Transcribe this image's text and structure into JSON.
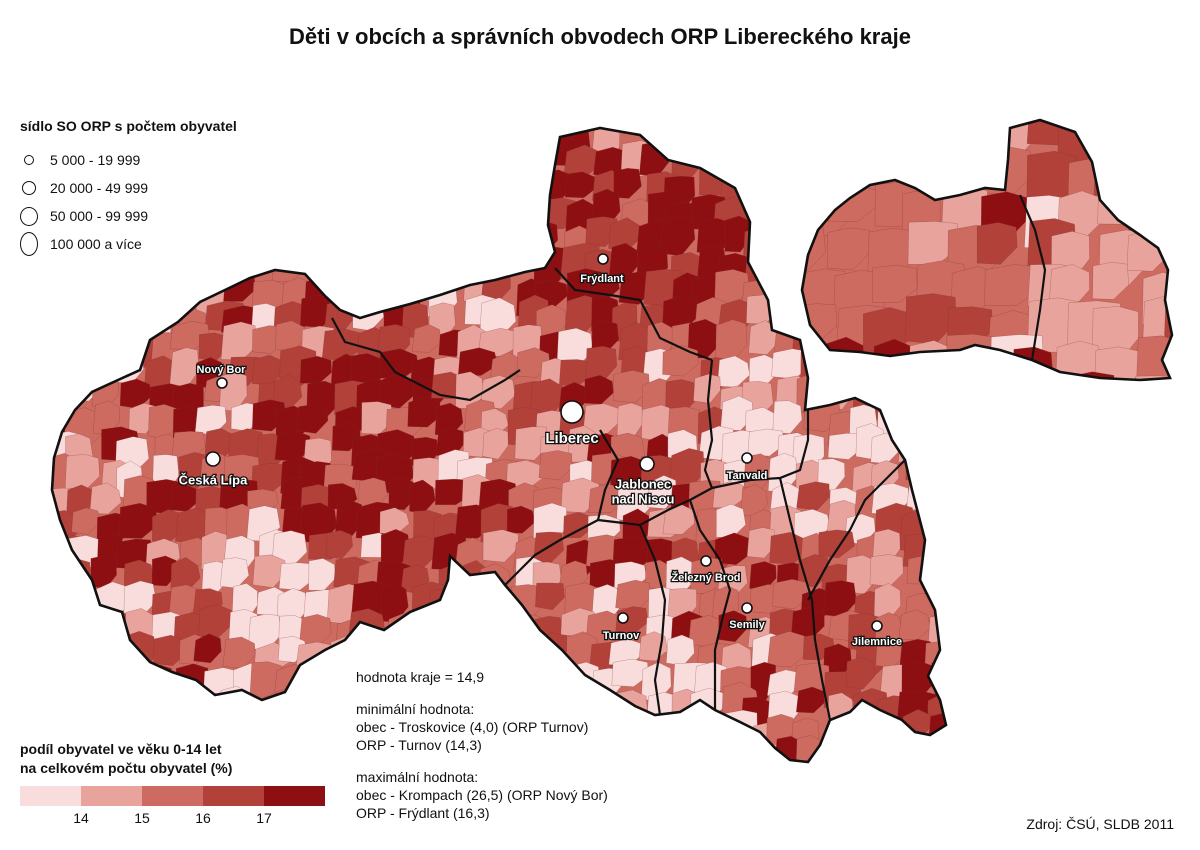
{
  "title": "Děti v obcích a správních obvodech ORP Libereckého kraje",
  "size_legend": {
    "heading": "sídlo SO ORP s počtem obyvatel",
    "classes": [
      {
        "label": "5 000 - 19 999",
        "icon": "circle-small-icon"
      },
      {
        "label": "20 000 - 49 999",
        "icon": "circle-medium-icon"
      },
      {
        "label": "50 000 - 99 999",
        "icon": "circle-large-icon"
      },
      {
        "label": "100 000 a více",
        "icon": "circle-xlarge-icon"
      }
    ]
  },
  "colors": {
    "class1": "#f9dcdc",
    "class2": "#e8a49c",
    "class3": "#cd6b60",
    "class4": "#b2413a",
    "class5": "#8e0f12",
    "boundary": "#111111",
    "municipal_boundary": "#7a3030"
  },
  "towns": [
    {
      "name": "Frýdlant",
      "size_class": 1
    },
    {
      "name": "Nový Bor",
      "size_class": 1
    },
    {
      "name": "Česká Lípa",
      "size_class": 2
    },
    {
      "name": "Liberec",
      "size_class": 4
    },
    {
      "name": "Jablonec nad Nisou",
      "size_class": 2
    },
    {
      "name": "Tanvald",
      "size_class": 1
    },
    {
      "name": "Železný Brod",
      "size_class": 1
    },
    {
      "name": "Turnov",
      "size_class": 1
    },
    {
      "name": "Semily",
      "size_class": 1
    },
    {
      "name": "Jilemnice",
      "size_class": 1
    }
  ],
  "town_labels": {
    "jablonec_line1": "Jablonec",
    "jablonec_line2": "nad Nisou"
  },
  "color_legend": {
    "heading_line1": "podíl obyvatel ve věku 0-14 let",
    "heading_line2": "na celkovém počtu obyvatel (%)",
    "breaks": [
      "14",
      "15",
      "16",
      "17"
    ]
  },
  "notes": {
    "region_value": "hodnota kraje = 14,9",
    "min_heading": "minimální hodnota:",
    "min_municipality": "obec - Troskovice (4,0) (ORP Turnov)",
    "min_orp": "ORP - Turnov (14,3)",
    "max_heading": "maximální hodnota:",
    "max_municipality": "obec - Krompach (26,5) (ORP Nový Bor)",
    "max_orp": "ORP - Frýdlant (16,3)"
  },
  "source": "Zdroj: ČSÚ, SLDB 2011"
}
